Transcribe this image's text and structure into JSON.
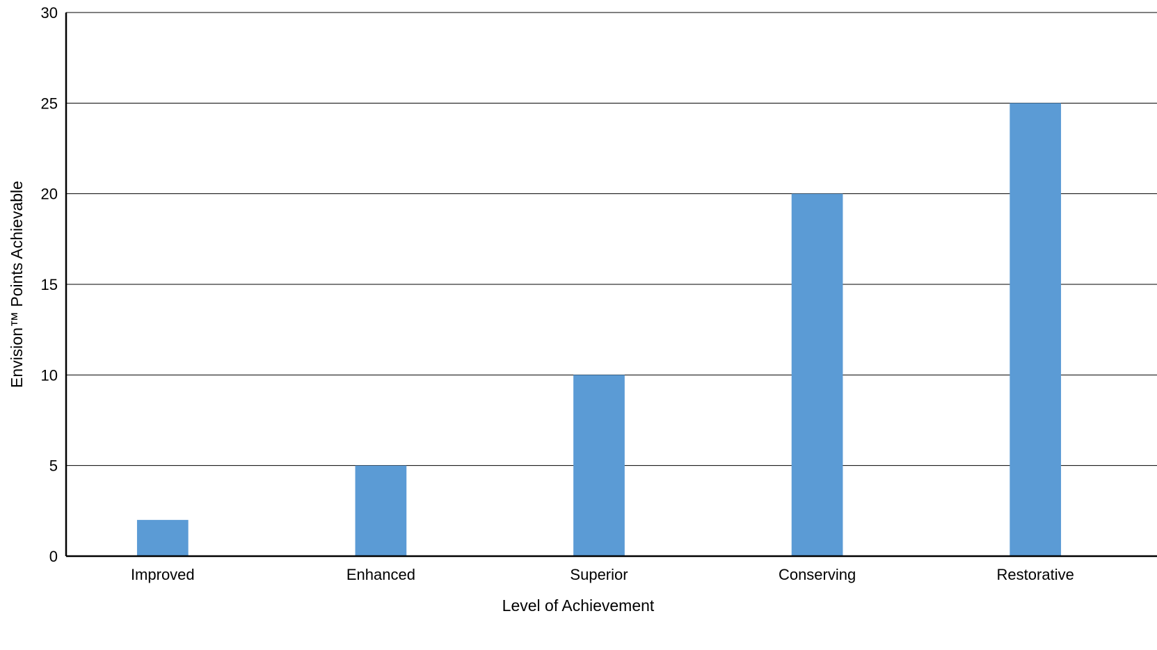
{
  "chart_data": {
    "type": "bar",
    "categories": [
      "Improved",
      "Enhanced",
      "Superior",
      "Conserving",
      "Restorative"
    ],
    "values": [
      2,
      5,
      10,
      20,
      25
    ],
    "title": "",
    "xlabel": "Level of Achievement",
    "ylabel": "Envision™ Points Achievable",
    "ylim": [
      0,
      30
    ],
    "yticks": [
      0,
      5,
      10,
      15,
      20,
      25,
      30
    ],
    "grid": true,
    "bar_color": "#5B9BD5"
  }
}
